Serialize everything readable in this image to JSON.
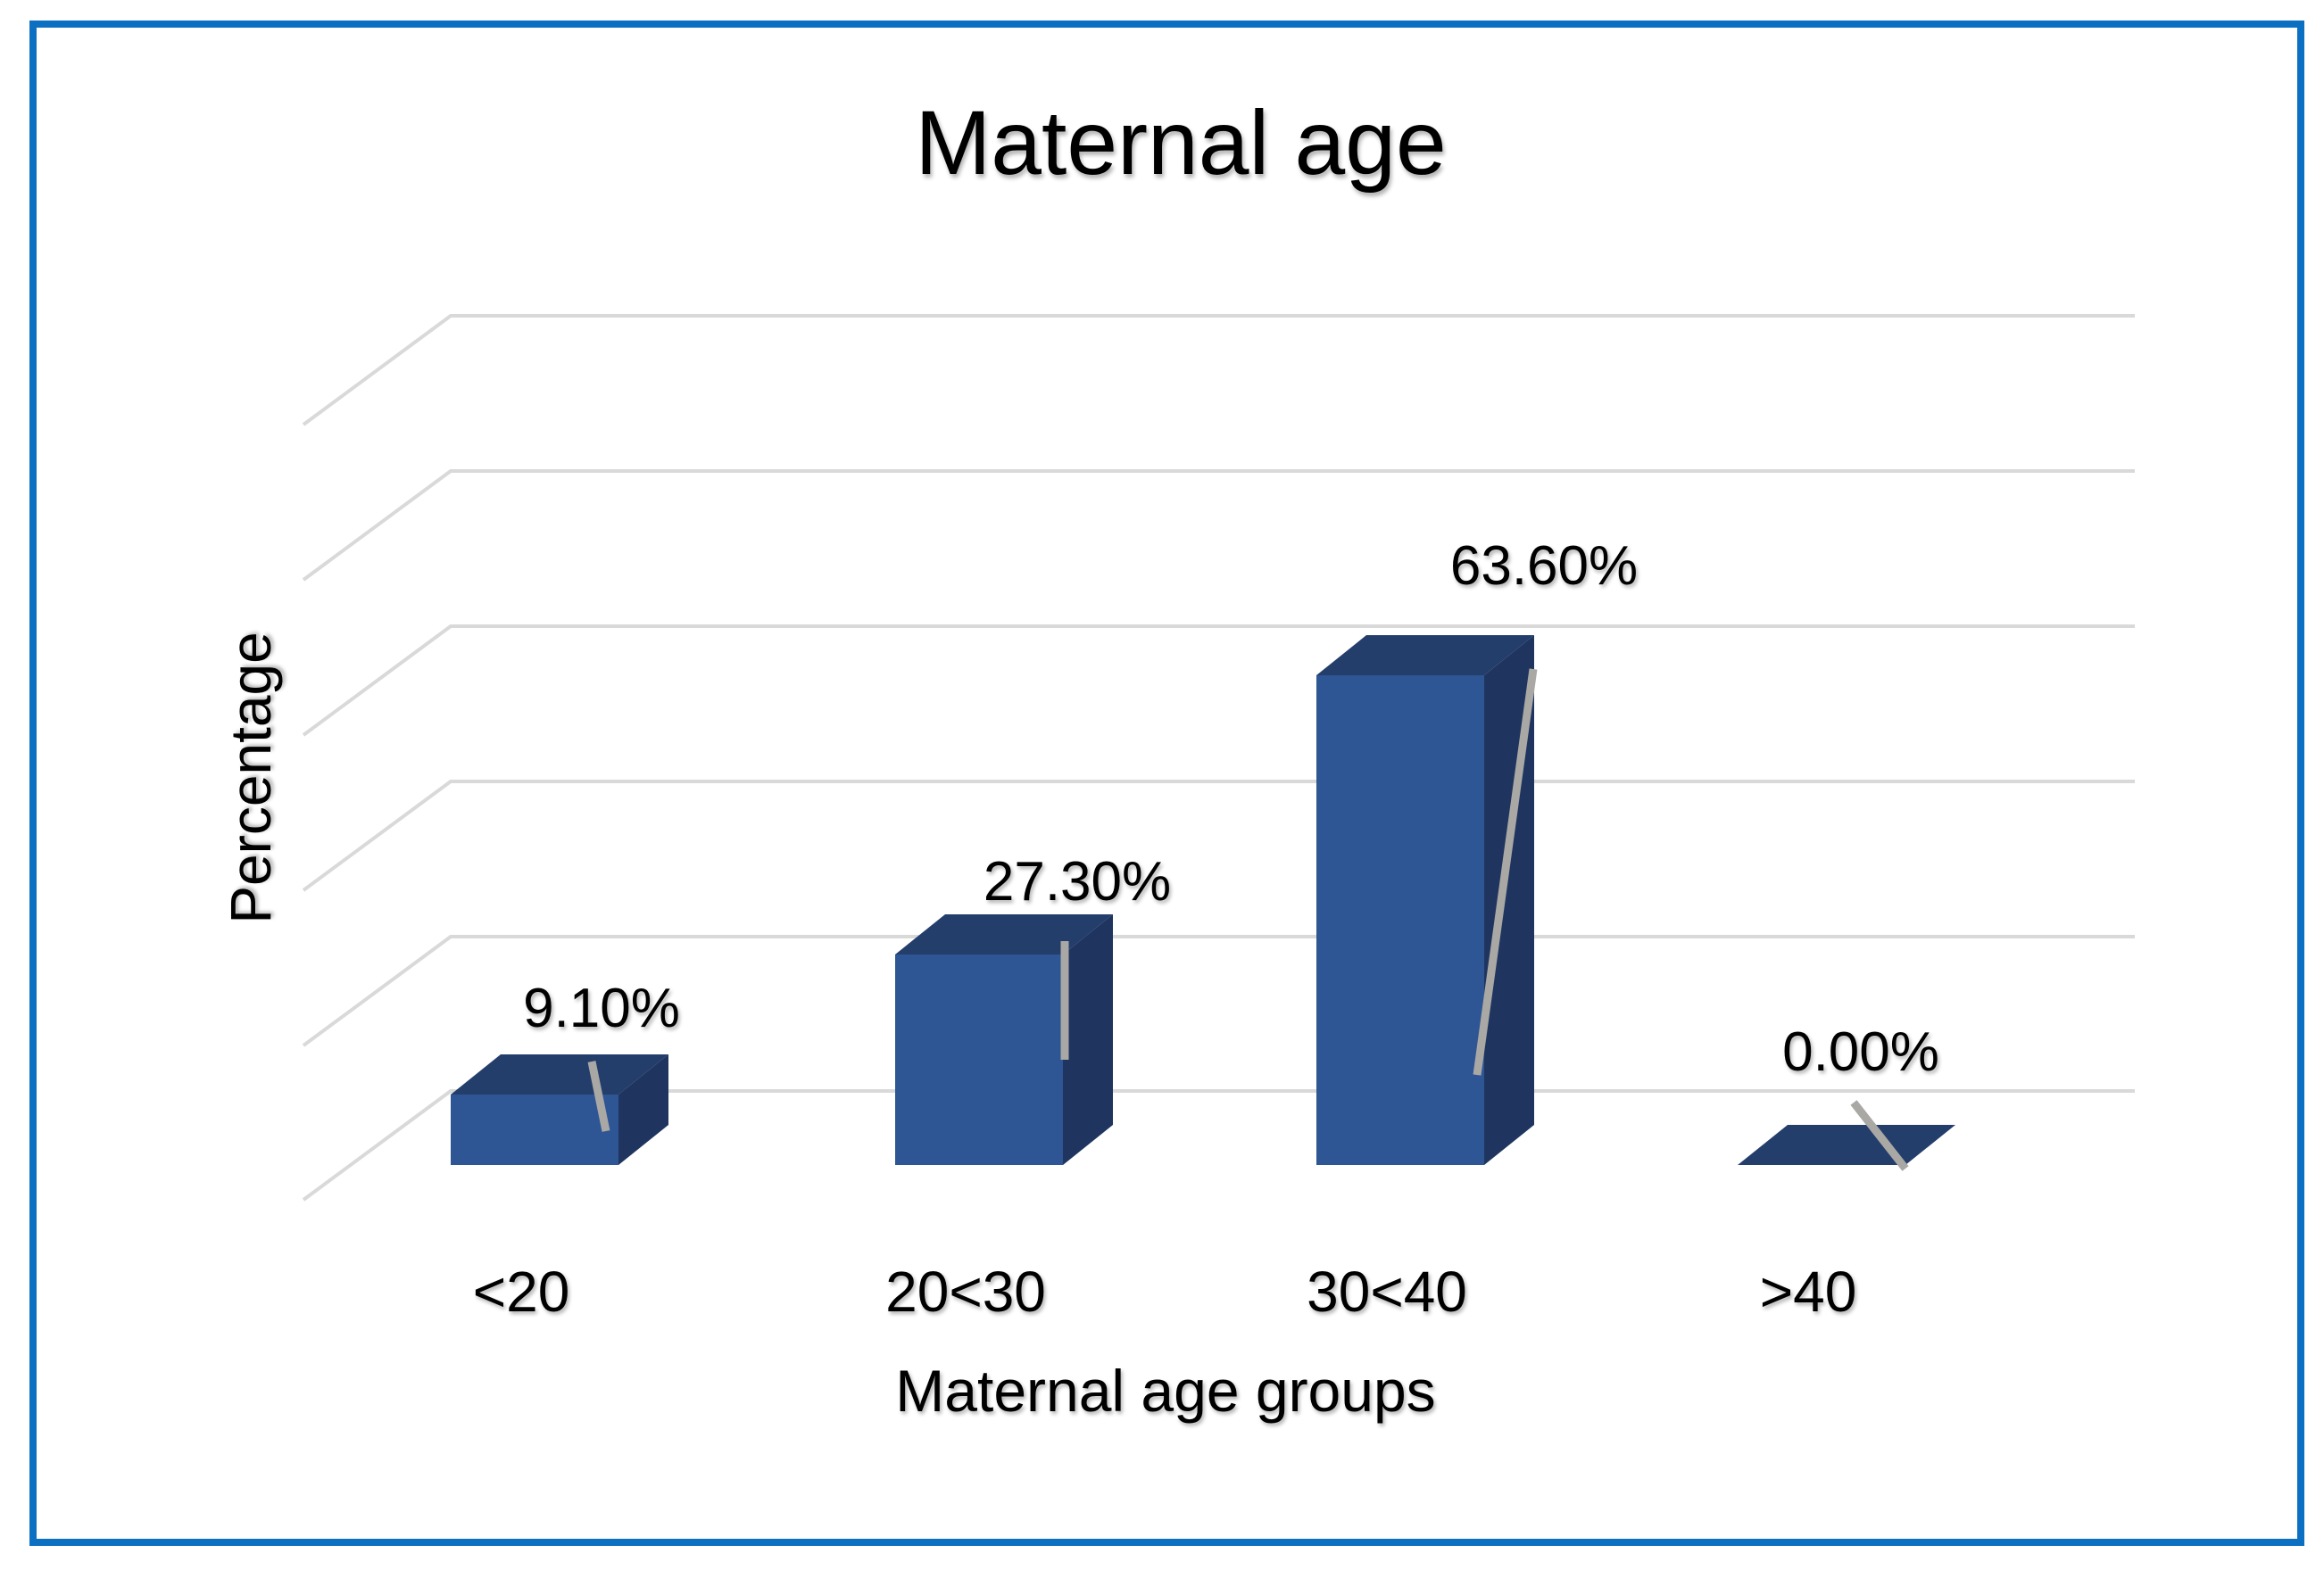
{
  "chart": {
    "title": "Maternal age",
    "y_axis_title": "Percentage",
    "x_axis_title": "Maternal age groups"
  },
  "chart_data": {
    "type": "bar",
    "subtype": "3d-column",
    "title": "Maternal age",
    "xlabel": "Maternal age groups",
    "ylabel": "Percentage",
    "categories": [
      "<20",
      "20<30",
      "30<40",
      ">40"
    ],
    "values": [
      9.1,
      27.3,
      63.6,
      0.0
    ],
    "data_labels": [
      "9.10%",
      "27.30%",
      "63.60%",
      "0.00%"
    ],
    "legend": "none",
    "grid": "on"
  },
  "colors": {
    "bar_front": "#2E5594",
    "bar_top": "#243E6C",
    "bar_side": "#1F355F",
    "gridline": "#D9D9D9",
    "leader_line": "#A9A8A4",
    "border": "#0C70C2",
    "background": "#FFFFFF",
    "text": "#000000"
  }
}
